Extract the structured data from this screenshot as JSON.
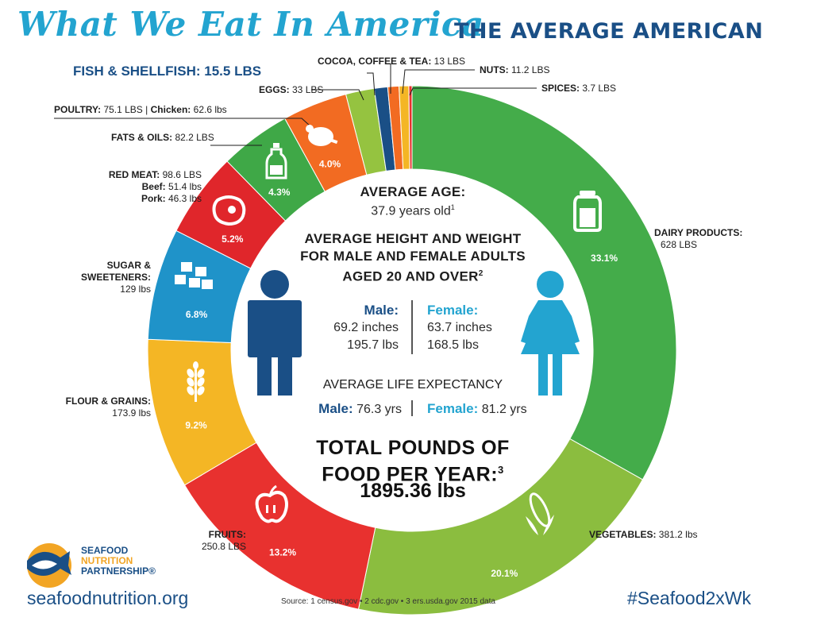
{
  "title": {
    "script": "What We Eat In America",
    "sub": "THE AVERAGE AMERICAN"
  },
  "chart_data": {
    "type": "pie",
    "title": "",
    "donut": true,
    "segments": [
      {
        "name": "DAIRY PRODUCTS",
        "value": 628,
        "unit": "LBS",
        "percent": "33.1%",
        "color": "#44ac4a"
      },
      {
        "name": "VEGETABLES",
        "value": 381.2,
        "unit": "lbs",
        "percent": "20.1%",
        "color": "#8bbd3f"
      },
      {
        "name": "FRUITS",
        "value": 250.8,
        "unit": "LBS",
        "percent": "13.2%",
        "color": "#e8312f"
      },
      {
        "name": "FLOUR & GRAINS",
        "value": 173.9,
        "unit": "lbs",
        "percent": "9.2%",
        "color": "#f4b625"
      },
      {
        "name": "SUGAR & SWEETENERS",
        "value": 129,
        "unit": "lbs",
        "percent": "6.8%",
        "color": "#1f93c9"
      },
      {
        "name": "RED MEAT",
        "value": 98.6,
        "unit": "LBS",
        "percent": "5.2%",
        "color": "#e0262b"
      },
      {
        "name": "FATS & OILS",
        "value": 82.2,
        "unit": "LBS",
        "percent": "4.3%",
        "color": "#3fa847"
      },
      {
        "name": "POULTRY",
        "value": 75.1,
        "unit": "LBS",
        "percent": "4.0%",
        "color": "#f26b22"
      },
      {
        "name": "EGGS",
        "value": 33,
        "unit": "LBS",
        "percent": "",
        "color": "#95c340"
      },
      {
        "name": "FISH & SHELLFISH",
        "value": 15.5,
        "unit": "LBS",
        "percent": "",
        "color": "#1a4f86"
      },
      {
        "name": "COCOA, COFFEE & TEA",
        "value": 13,
        "unit": "LBS",
        "percent": "",
        "color": "#f26b22"
      },
      {
        "name": "NUTS",
        "value": 11.2,
        "unit": "LBS",
        "percent": "",
        "color": "#f4b625"
      },
      {
        "name": "SPICES",
        "value": 3.7,
        "unit": "LBS",
        "percent": "",
        "color": "#e8312f"
      }
    ]
  },
  "labels": {
    "fish": "FISH & SHELLFISH: 15.5 LBS",
    "cocoa_name": "COCOA, COFFEE & TEA:",
    "cocoa_val": " 13 LBS",
    "nuts_name": "NUTS:",
    "nuts_val": " 11.2 LBS",
    "spices_name": "SPICES:",
    "spices_val": " 3.7 LBS",
    "eggs_name": "EGGS:",
    "eggs_val": " 33 LBS",
    "poultry_name": "POULTRY:",
    "poultry_val": " 75.1 LBS",
    "poultry_sep": " | ",
    "chicken_name": "Chicken:",
    "chicken_val": " 62.6 lbs",
    "fats_name": "FATS & OILS:",
    "fats_val": " 82.2 LBS",
    "redmeat_name": "RED MEAT:",
    "redmeat_val": " 98.6 LBS",
    "beef_name": "Beef:",
    "beef_val": " 51.4 lbs",
    "pork_name": "Pork:",
    "pork_val": " 46.3 lbs",
    "sugar_name1": "SUGAR &",
    "sugar_name2": "SWEETENERS:",
    "sugar_val": "129 lbs",
    "flour_name": "FLOUR & GRAINS:",
    "flour_val": "173.9 lbs",
    "fruits_name": "FRUITS:",
    "fruits_val": "250.8 LBS",
    "veg_name": "VEGETABLES:",
    "veg_val": " 381.2 lbs",
    "dairy_name": "DAIRY PRODUCTS:",
    "dairy_val": "628 LBS"
  },
  "center": {
    "age_heading": "AVERAGE AGE:",
    "age_value": "37.9 years old",
    "age_sup": "1",
    "hw_line1": "AVERAGE HEIGHT AND WEIGHT",
    "hw_line2": "FOR MALE AND FEMALE ADULTS",
    "hw_line3": "AGED 20 AND OVER",
    "hw_sup": "2",
    "male_label": "Male:",
    "male_height": "69.2 inches",
    "male_weight": "195.7 lbs",
    "female_label": "Female:",
    "female_height": "63.7 inches",
    "female_weight": "168.5 lbs",
    "life_heading": "AVERAGE LIFE EXPECTANCY",
    "life_male_label": "Male:",
    "life_male_value": " 76.3 yrs",
    "life_female_label": "Female:",
    "life_female_value": " 81.2 yrs",
    "total_line1": "TOTAL POUNDS OF",
    "total_line2": "FOOD PER YEAR:",
    "total_sup": "3",
    "total_value": "1895.36 lbs"
  },
  "footer": {
    "url": "seafoodnutrition.org",
    "hashtag": "#Seafood2xWk",
    "source": "Source:  1 census.gov  •  2 cdc.gov  •  3 ers.usda.gov 2015 data",
    "logo_line1": "SEAFOOD",
    "logo_line2": "NUTRITION",
    "logo_line3": "PARTNERSHIP®"
  },
  "icons": [
    "milk-jug-icon",
    "corn-icon",
    "apple-icon",
    "wheat-icon",
    "sugar-cubes-icon",
    "steak-icon",
    "oil-bottle-icon",
    "chicken-icon",
    "male-figure-icon",
    "female-figure-icon",
    "fish-logo-icon"
  ]
}
